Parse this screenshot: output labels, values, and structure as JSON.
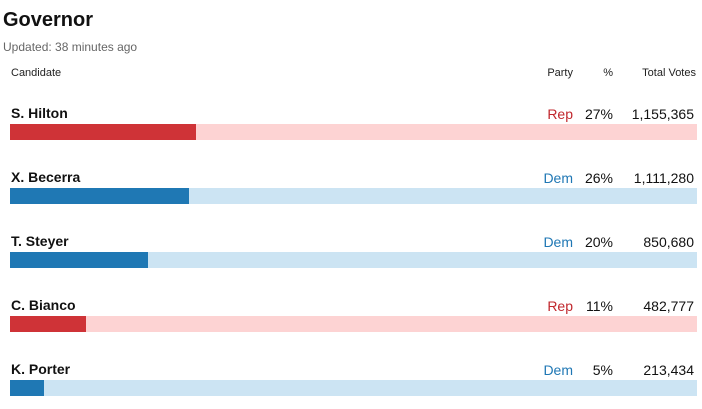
{
  "title": "Governor",
  "updated": "Updated: 38 minutes ago",
  "headers": {
    "candidate": "Candidate",
    "party": "Party",
    "percent": "%",
    "total_votes": "Total Votes"
  },
  "colors": {
    "rep_fill": "#cf3337",
    "rep_track": "#fdd3d3",
    "dem_fill": "#1f78b4",
    "dem_track": "#cce4f3"
  },
  "candidates": [
    {
      "name": "S. Hilton",
      "party": "Rep",
      "percent": "27%",
      "votes": "1,155,365",
      "bar_fraction": 0.27
    },
    {
      "name": "X. Becerra",
      "party": "Dem",
      "percent": "26%",
      "votes": "1,111,280",
      "bar_fraction": 0.26
    },
    {
      "name": "T. Steyer",
      "party": "Dem",
      "percent": "20%",
      "votes": "850,680",
      "bar_fraction": 0.2
    },
    {
      "name": "C. Bianco",
      "party": "Rep",
      "percent": "11%",
      "votes": "482,777",
      "bar_fraction": 0.11
    },
    {
      "name": "K. Porter",
      "party": "Dem",
      "percent": "5%",
      "votes": "213,434",
      "bar_fraction": 0.05
    }
  ]
}
